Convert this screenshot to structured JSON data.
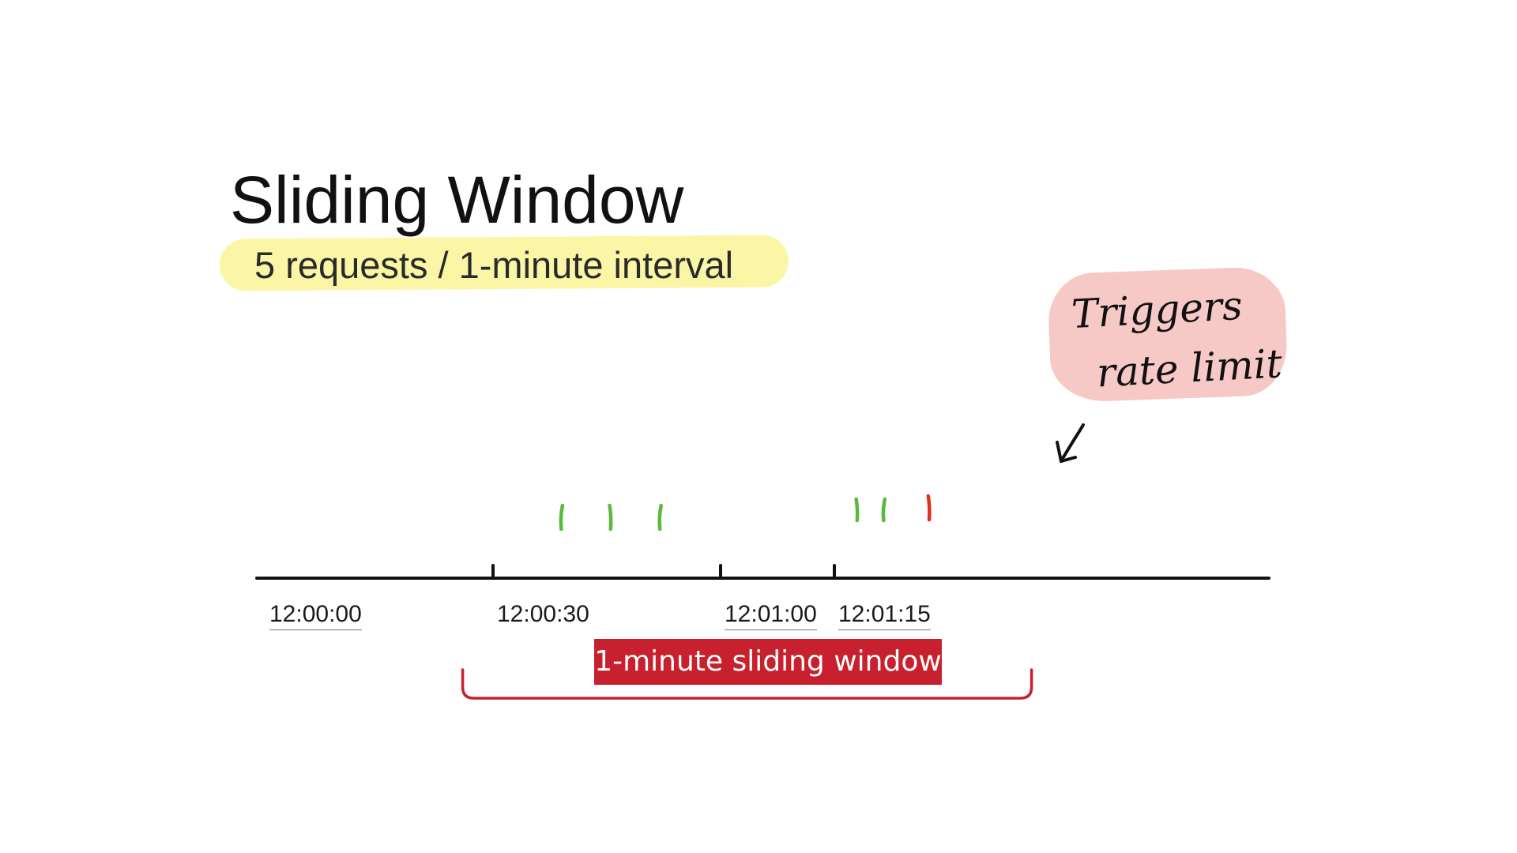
{
  "title": "Sliding Window",
  "subtitle": "5 requests / 1-minute interval",
  "callout": {
    "line1": "Triggers",
    "line2": "rate limit"
  },
  "timeline": {
    "ticks": [
      {
        "label": "12:00:00",
        "t": 0,
        "marker": false,
        "underlined": true
      },
      {
        "label": "12:00:30",
        "t": 30,
        "marker": true,
        "underlined": false
      },
      {
        "label": "12:01:00",
        "t": 60,
        "marker": true,
        "underlined": true
      },
      {
        "label": "12:01:15",
        "t": 75,
        "marker": true,
        "underlined": true
      }
    ],
    "requests": [
      {
        "t": 39,
        "status": "allowed"
      },
      {
        "t": 45.5,
        "status": "allowed"
      },
      {
        "t": 52,
        "status": "allowed"
      },
      {
        "t": 78,
        "status": "allowed"
      },
      {
        "t": 81.5,
        "status": "allowed"
      },
      {
        "t": 87.5,
        "status": "rejected"
      }
    ],
    "window": {
      "label": "1-minute sliding window",
      "start": 26,
      "end": 101
    }
  },
  "colors": {
    "allowed": "#5cb83c",
    "rejected": "#e0301e",
    "window": "#c8202e",
    "highlight": "#fbf6a6",
    "callout_bg": "#f6c8c6"
  }
}
